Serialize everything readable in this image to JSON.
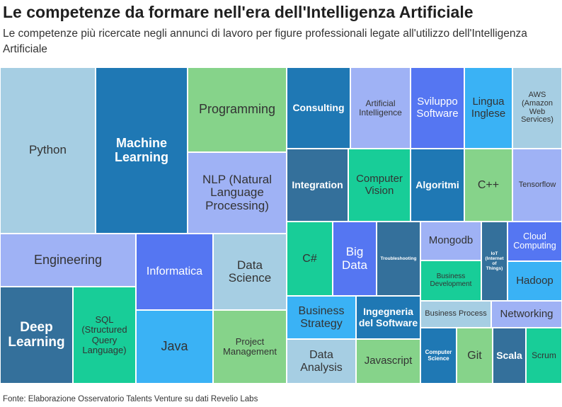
{
  "title": "Le competenze da formare nell'era dell'Intelligenza Artificiale",
  "subtitle": "Le competenze più ricercate negli annunci di lavoro per figure professionali legate all'utilizzo dell'Intelligenza Artificiale",
  "source": "Fonte: Elaborazione Osservatorio Talents Venture su dati Revelio Labs",
  "chart_data": {
    "type": "treemap",
    "colors": {
      "light_blue": "#a6cee3",
      "dark_blue": "#1f78b4",
      "green": "#86d38a",
      "periwinkle": "#9fb2f5",
      "royal_blue": "#5576f2",
      "sky_blue": "#3ab2f5",
      "teal": "#18cd98",
      "steel_blue": "#34709b"
    },
    "items": [
      {
        "label": "Python",
        "color": "light_blue"
      },
      {
        "label": "Machine Learning",
        "color": "dark_blue",
        "bold": true
      },
      {
        "label": "Programming",
        "color": "green"
      },
      {
        "label": "NLP (Natural Language Processing)",
        "color": "periwinkle"
      },
      {
        "label": "Engineering",
        "color": "periwinkle"
      },
      {
        "label": "Informatica",
        "color": "royal_blue"
      },
      {
        "label": "Data Science",
        "color": "light_blue"
      },
      {
        "label": "Deep Learning",
        "color": "steel_blue",
        "bold": true
      },
      {
        "label": "SQL (Structured Query Language)",
        "color": "teal"
      },
      {
        "label": "Java",
        "color": "sky_blue"
      },
      {
        "label": "Project Management",
        "color": "green"
      },
      {
        "label": "Consulting",
        "color": "dark_blue",
        "bold": true
      },
      {
        "label": "Artificial Intelligence",
        "color": "periwinkle"
      },
      {
        "label": "Sviluppo Software",
        "color": "royal_blue"
      },
      {
        "label": "Lingua Inglese",
        "color": "sky_blue"
      },
      {
        "label": "AWS (Amazon Web Services)",
        "color": "light_blue"
      },
      {
        "label": "Integration",
        "color": "steel_blue",
        "bold": true
      },
      {
        "label": "Computer Vision",
        "color": "teal"
      },
      {
        "label": "Algoritmi",
        "color": "dark_blue",
        "bold": true
      },
      {
        "label": "C++",
        "color": "green"
      },
      {
        "label": "Tensorflow",
        "color": "periwinkle"
      },
      {
        "label": "C#",
        "color": "teal"
      },
      {
        "label": "Big Data",
        "color": "royal_blue"
      },
      {
        "label": "Troubleshooting",
        "color": "steel_blue",
        "bold": true
      },
      {
        "label": "Mongodb",
        "color": "periwinkle"
      },
      {
        "label": "IoT (Internet of Things)",
        "color": "steel_blue",
        "bold": true
      },
      {
        "label": "Cloud Computing",
        "color": "royal_blue"
      },
      {
        "label": "Business Development",
        "color": "teal"
      },
      {
        "label": "Hadoop",
        "color": "sky_blue"
      },
      {
        "label": "Business Strategy",
        "color": "sky_blue"
      },
      {
        "label": "Ingegneria del Software",
        "color": "dark_blue",
        "bold": true
      },
      {
        "label": "Business Process",
        "color": "light_blue"
      },
      {
        "label": "Networking",
        "color": "periwinkle"
      },
      {
        "label": "Data Analysis",
        "color": "light_blue"
      },
      {
        "label": "Javascript",
        "color": "green"
      },
      {
        "label": "Computer Science",
        "color": "dark_blue",
        "bold": true
      },
      {
        "label": "Git",
        "color": "green"
      },
      {
        "label": "Scala",
        "color": "steel_blue",
        "bold": true
      },
      {
        "label": "Scrum",
        "color": "teal"
      }
    ]
  }
}
